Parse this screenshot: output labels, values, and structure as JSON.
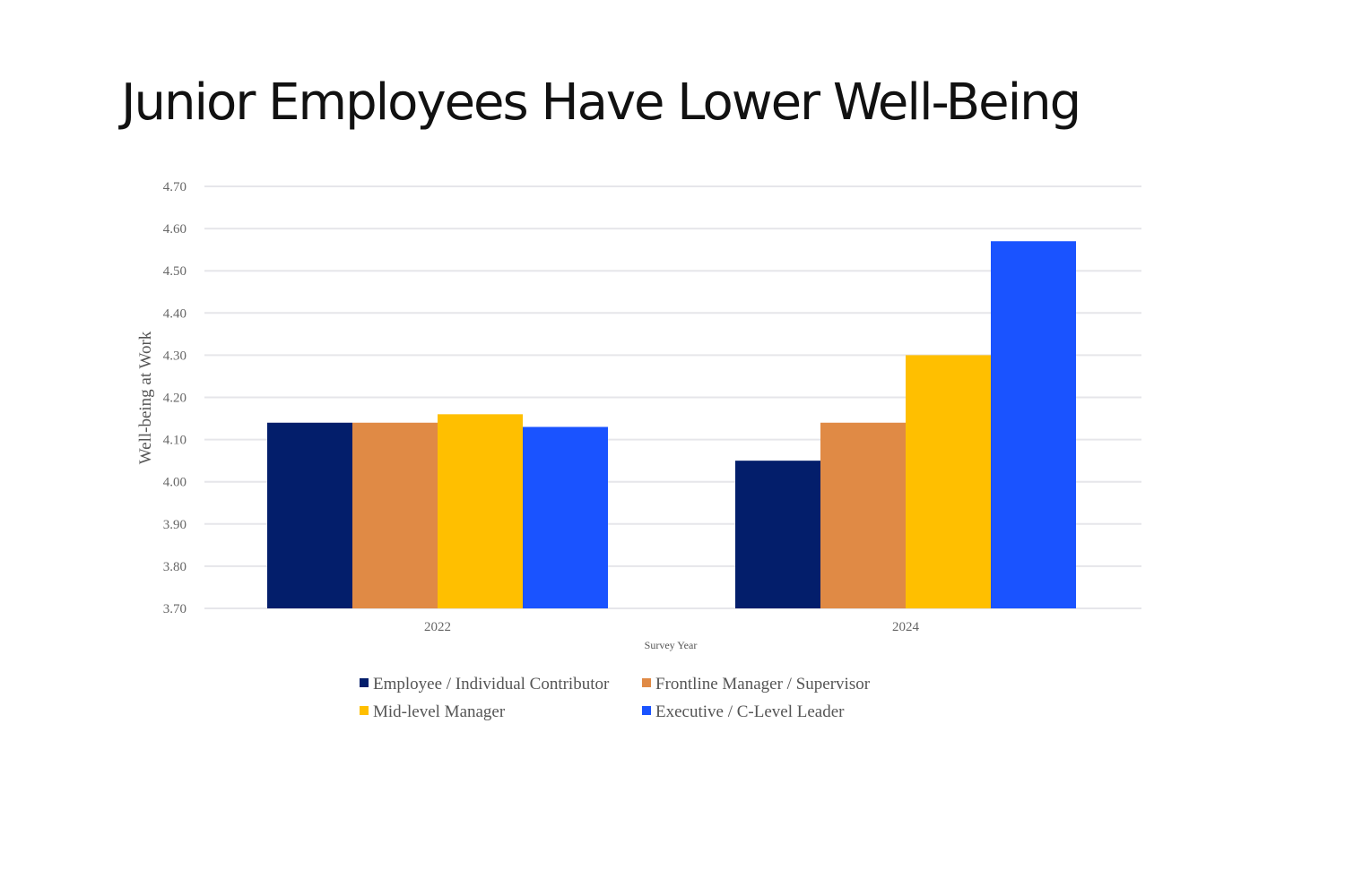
{
  "chart_data": {
    "type": "bar",
    "title": "Junior Employees Have Lower Well-Being",
    "xlabel": "Survey Year",
    "ylabel": "Well-being at Work",
    "ylim": [
      3.7,
      4.7
    ],
    "yticks": [
      "3.70",
      "3.80",
      "3.90",
      "4.00",
      "4.10",
      "4.20",
      "4.30",
      "4.40",
      "4.50",
      "4.60",
      "4.70"
    ],
    "grid": true,
    "legend_position": "bottom",
    "categories": [
      "2022",
      "2024"
    ],
    "series": [
      {
        "name": "Employee / Individual Contributor",
        "color": "#031e6b",
        "values": [
          4.14,
          4.05
        ]
      },
      {
        "name": "Frontline Manager / Supervisor",
        "color": "#e08a45",
        "values": [
          4.14,
          4.14
        ]
      },
      {
        "name": "Mid-level Manager",
        "color": "#ffbf00",
        "values": [
          4.16,
          4.3
        ]
      },
      {
        "name": "Executive / C-Level Leader",
        "color": "#1a53ff",
        "values": [
          4.13,
          4.57
        ]
      }
    ]
  }
}
